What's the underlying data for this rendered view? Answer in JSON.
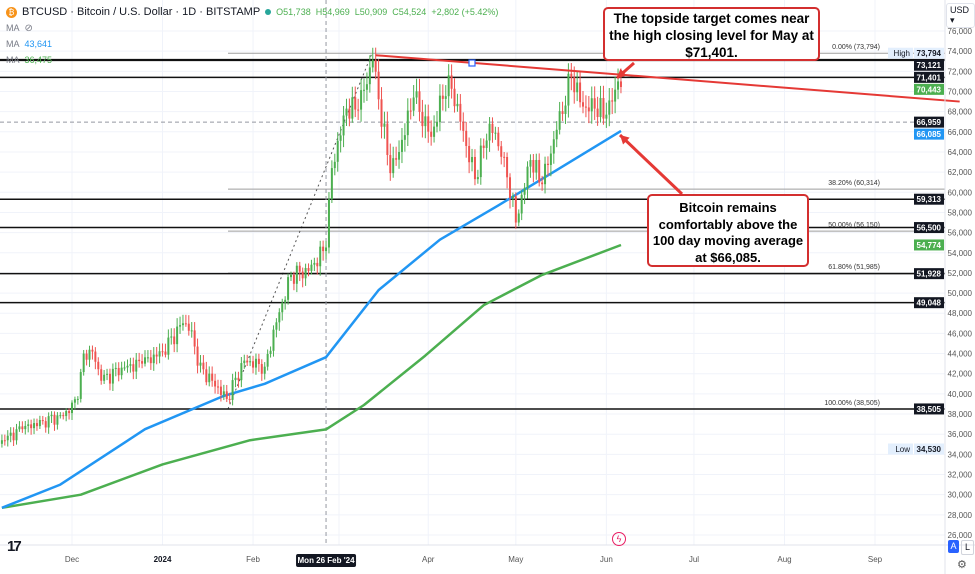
{
  "header": {
    "symbol": "BTCUSD · Bitcoin / U.S. Dollar · 1D · BITSTAMP",
    "ohlc": {
      "open": "O51,738",
      "high": "H54,969",
      "low": "L50,909",
      "close": "C54,524",
      "change": "+2,802 (+5.42%)"
    },
    "indicators": [
      {
        "label": "MA",
        "value": "",
        "icon": "eye-hidden-icon"
      },
      {
        "label": "MA",
        "value": "43,641",
        "color": "#2196f3"
      },
      {
        "label": "MA",
        "value": "36,475",
        "color": "#4caf50"
      }
    ],
    "currency": "USD"
  },
  "annotations": {
    "topside": "The topside target comes near the high closing level for May at $71,401.",
    "ma": "Bitcoin remains comfortably above the 100 day moving average at $66,085."
  },
  "crosshair": {
    "date_label": "Mon 26 Feb '24",
    "price_label": "66,959",
    "date": "2024-02-26",
    "price": 66959
  },
  "footer": {
    "scale_auto": "A",
    "scale_log": "L"
  },
  "colors": {
    "up": "#4caf50",
    "down": "#ef5350",
    "ma100": "#2196f3",
    "ma200": "#4caf50",
    "trendline": "#e53935",
    "callout_border": "#d32f2f"
  },
  "chart_data": {
    "type": "candlestick",
    "ylim": [
      25000,
      77000
    ],
    "xlim": [
      "2023-11-07",
      "2024-09-30"
    ],
    "grid": true,
    "y_ticks": [
      "76,000",
      "74,000",
      "72,000",
      "70,000",
      "68,000",
      "66,000",
      "64,000",
      "62,000",
      "60,000",
      "58,000",
      "56,000",
      "54,000",
      "52,000",
      "50,000",
      "48,000",
      "46,000",
      "44,000",
      "42,000",
      "40,000",
      "38,000",
      "36,000",
      "34,000",
      "32,000",
      "30,000",
      "28,000",
      "26,000"
    ],
    "x_ticks": [
      {
        "label": "Dec",
        "date": "2023-12-01"
      },
      {
        "label": "2024",
        "date": "2024-01-01"
      },
      {
        "label": "Feb",
        "date": "2024-02-01"
      },
      {
        "label": "Apr",
        "date": "2024-04-01"
      },
      {
        "label": "May",
        "date": "2024-05-01"
      },
      {
        "label": "Jun",
        "date": "2024-06-01"
      },
      {
        "label": "Jul",
        "date": "2024-07-01"
      },
      {
        "label": "Aug",
        "date": "2024-08-01"
      },
      {
        "label": "Sep",
        "date": "2024-09-01"
      }
    ],
    "closes": [
      [
        "2023-11-07",
        35400
      ],
      [
        "2023-11-14",
        36500
      ],
      [
        "2023-11-21",
        37300
      ],
      [
        "2023-11-28",
        37800
      ],
      [
        "2023-12-03",
        39500
      ],
      [
        "2023-12-05",
        44000
      ],
      [
        "2023-12-08",
        44200
      ],
      [
        "2023-12-11",
        41300
      ],
      [
        "2023-12-18",
        42600
      ],
      [
        "2023-12-25",
        43000
      ],
      [
        "2024-01-01",
        44200
      ],
      [
        "2024-01-08",
        47000
      ],
      [
        "2024-01-11",
        46300
      ],
      [
        "2024-01-13",
        42800
      ],
      [
        "2024-01-18",
        41300
      ],
      [
        "2024-01-23",
        39500
      ],
      [
        "2024-01-29",
        43300
      ],
      [
        "2024-02-05",
        42700
      ],
      [
        "2024-02-09",
        47100
      ],
      [
        "2024-02-14",
        51800
      ],
      [
        "2024-02-20",
        52200
      ],
      [
        "2024-02-26",
        54524
      ],
      [
        "2024-02-28",
        62400
      ],
      [
        "2024-03-04",
        68300
      ],
      [
        "2024-03-08",
        68200
      ],
      [
        "2024-03-13",
        73100
      ],
      [
        "2024-03-19",
        61900
      ],
      [
        "2024-03-22",
        64000
      ],
      [
        "2024-03-27",
        69400
      ],
      [
        "2024-04-02",
        65500
      ],
      [
        "2024-04-08",
        71600
      ],
      [
        "2024-04-12",
        67000
      ],
      [
        "2024-04-17",
        61300
      ],
      [
        "2024-04-22",
        66800
      ],
      [
        "2024-04-27",
        63500
      ],
      [
        "2024-05-01",
        57000
      ],
      [
        "2024-05-06",
        63200
      ],
      [
        "2024-05-10",
        60800
      ],
      [
        "2024-05-15",
        66200
      ],
      [
        "2024-05-20",
        71400
      ],
      [
        "2024-05-24",
        68500
      ],
      [
        "2024-05-28",
        68300
      ],
      [
        "2024-06-01",
        67700
      ],
      [
        "2024-06-03",
        69000
      ],
      [
        "2024-06-05",
        71000
      ],
      [
        "2024-06-06",
        70443
      ]
    ],
    "ma100": [
      [
        "2023-11-07",
        28700
      ],
      [
        "2023-11-27",
        31000
      ],
      [
        "2023-12-26",
        36500
      ],
      [
        "2024-01-22",
        39800
      ],
      [
        "2024-02-05",
        41000
      ],
      [
        "2024-02-26",
        43641
      ],
      [
        "2024-03-15",
        50300
      ],
      [
        "2024-04-05",
        55300
      ],
      [
        "2024-04-25",
        58700
      ],
      [
        "2024-05-15",
        62200
      ],
      [
        "2024-06-06",
        66085
      ]
    ],
    "ma200": [
      [
        "2023-11-07",
        28700
      ],
      [
        "2023-12-04",
        30000
      ],
      [
        "2024-01-01",
        33000
      ],
      [
        "2024-01-31",
        35400
      ],
      [
        "2024-02-26",
        36475
      ],
      [
        "2024-03-10",
        38900
      ],
      [
        "2024-03-31",
        43800
      ],
      [
        "2024-04-20",
        48800
      ],
      [
        "2024-05-10",
        51800
      ],
      [
        "2024-06-06",
        54774
      ]
    ],
    "horizontal_levels": [
      73121,
      71401,
      59313,
      56500,
      51928,
      49048,
      38505
    ],
    "fibonacci": [
      {
        "label": "0.00% (73,794)",
        "short": "0.00% (7:",
        "price": 73794
      },
      {
        "label": "38.20% (60,314)",
        "price": 60314
      },
      {
        "label": "50.00% (56,150)",
        "price": 56150
      },
      {
        "label": "61.80% (51,985)",
        "price": 51985
      },
      {
        "label": "100.00% (38,505)",
        "price": 38505
      }
    ],
    "trendline": {
      "from": [
        "2024-03-14",
        73600
      ],
      "to": [
        "2024-09-30",
        69000
      ]
    },
    "price_tags": [
      {
        "value": "73,794",
        "price": 73794,
        "prefix": "High",
        "style": "extreme"
      },
      {
        "value": "73,121",
        "price": 73121,
        "style": "level"
      },
      {
        "value": "71,401",
        "price": 71401,
        "style": "level"
      },
      {
        "value": "70,443",
        "price": 70443,
        "style": "last"
      },
      {
        "value": "66,085",
        "price": 66085,
        "style": "ma100"
      },
      {
        "value": "66,959",
        "price": 66959,
        "style": "crosshair"
      },
      {
        "value": "59,313",
        "price": 59313,
        "style": "level"
      },
      {
        "value": "56,500",
        "price": 56500,
        "style": "level"
      },
      {
        "value": "54,774",
        "price": 54774,
        "style": "ma200"
      },
      {
        "value": "51,928",
        "price": 51928,
        "style": "level"
      },
      {
        "value": "49,048",
        "price": 49048,
        "style": "level"
      },
      {
        "value": "38,505",
        "price": 38505,
        "style": "level"
      },
      {
        "value": "34,530",
        "price": 34530,
        "prefix": "Low",
        "style": "extreme"
      }
    ]
  }
}
